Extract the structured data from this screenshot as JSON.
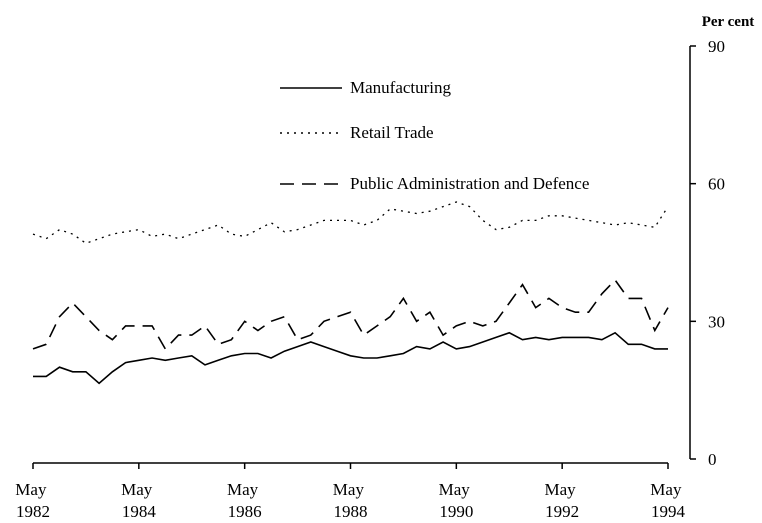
{
  "chart_data": {
    "type": "line",
    "y_axis_label": "Per cent",
    "categories": [
      "May 1982",
      null,
      null,
      null,
      null,
      null,
      null,
      null,
      "May 1984",
      null,
      null,
      null,
      null,
      null,
      null,
      null,
      "May 1986",
      null,
      null,
      null,
      null,
      null,
      null,
      null,
      "May 1988",
      null,
      null,
      null,
      null,
      null,
      null,
      null,
      "May 1990",
      null,
      null,
      null,
      null,
      null,
      null,
      null,
      "May 1992",
      null,
      null,
      null,
      null,
      null,
      null,
      null,
      "May 1994"
    ],
    "series": [
      {
        "name": "Manufacturing",
        "color": "#000000",
        "dash": "solid",
        "values": [
          18,
          18,
          20,
          19,
          19,
          16.5,
          19,
          21,
          21.5,
          22,
          21.5,
          22,
          22.5,
          20.5,
          21.5,
          22.5,
          23,
          23,
          22,
          23.5,
          24.5,
          25.5,
          24.5,
          23.5,
          22.5,
          22,
          22,
          22.5,
          23,
          24.5,
          24,
          25.5,
          24,
          24.5,
          25.5,
          26.5,
          27.5,
          26,
          26.5,
          26,
          26.5,
          26.5,
          26.5,
          26,
          27.5,
          25,
          25,
          24,
          24
        ]
      },
      {
        "name": "Retail Trade",
        "color": "#000000",
        "dash": "dotted",
        "values": [
          49,
          48,
          50,
          49,
          47,
          48,
          49,
          49.5,
          50,
          48.5,
          49,
          48,
          49,
          50,
          51,
          49,
          48.5,
          50,
          51.5,
          49.5,
          50,
          51,
          52,
          52,
          52,
          51,
          52,
          54.5,
          54,
          53.5,
          54,
          55,
          56,
          55,
          52,
          50,
          50.5,
          52,
          52,
          53,
          53,
          52.5,
          52,
          51.5,
          51,
          51.5,
          51,
          50.5,
          55
        ]
      },
      {
        "name": "Public Administration and Defence",
        "color": "#000000",
        "dash": "dashed",
        "values": [
          24,
          25,
          31,
          34,
          31,
          28,
          26,
          29,
          29,
          29,
          24,
          27,
          27,
          29,
          25,
          26,
          30,
          28,
          30,
          31,
          26,
          27,
          30,
          31,
          32,
          27,
          29,
          31,
          35,
          30,
          32,
          27,
          29,
          30,
          29,
          30,
          34,
          38,
          33,
          35,
          33,
          32,
          32,
          36,
          39,
          35,
          35,
          28,
          33
        ]
      }
    ],
    "ylim": [
      0,
      90
    ],
    "yticks": [
      0,
      30,
      60,
      90
    ]
  }
}
